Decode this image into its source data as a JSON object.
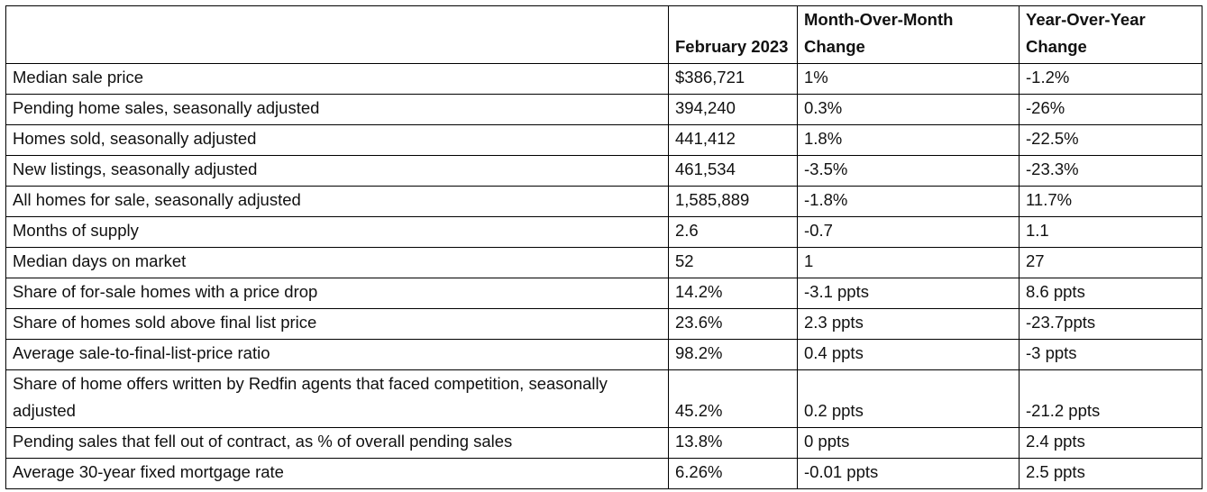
{
  "table": {
    "columns": [
      "February 2023",
      "Month-Over-Month Change",
      "Year-Over-Year Change"
    ],
    "rows": [
      [
        "Median sale price",
        "$386,721",
        "1%",
        "-1.2%"
      ],
      [
        "Pending home sales, seasonally adjusted",
        "394,240",
        "0.3%",
        "-26%"
      ],
      [
        "Homes sold, seasonally adjusted",
        "441,412",
        "1.8%",
        "-22.5%"
      ],
      [
        "New listings, seasonally adjusted",
        "461,534",
        "-3.5%",
        "-23.3%"
      ],
      [
        "All homes for sale, seasonally adjusted",
        "1,585,889",
        "-1.8%",
        "11.7%"
      ],
      [
        "Months of supply",
        "2.6",
        "-0.7",
        "1.1"
      ],
      [
        "Median days on market",
        "52",
        "1",
        "27"
      ],
      [
        "Share of for-sale homes with a price drop",
        "14.2%",
        "-3.1 ppts",
        "8.6 ppts"
      ],
      [
        "Share of homes sold above final list price",
        "23.6%",
        "2.3 ppts",
        "-23.7ppts"
      ],
      [
        "Average sale-to-final-list-price ratio",
        "98.2%",
        "0.4 ppts",
        "-3 ppts"
      ],
      [
        "Share of home offers written by Redfin agents that faced competition, seasonally adjusted",
        "45.2%",
        "0.2 ppts",
        "-21.2 ppts"
      ],
      [
        "Pending sales that fell out of contract, as % of overall pending sales",
        "13.8%",
        "0 ppts",
        "2.4 ppts"
      ],
      [
        "Average 30-year fixed mortgage rate",
        "6.26%",
        "-0.01 ppts",
        "2.5 ppts"
      ]
    ]
  }
}
